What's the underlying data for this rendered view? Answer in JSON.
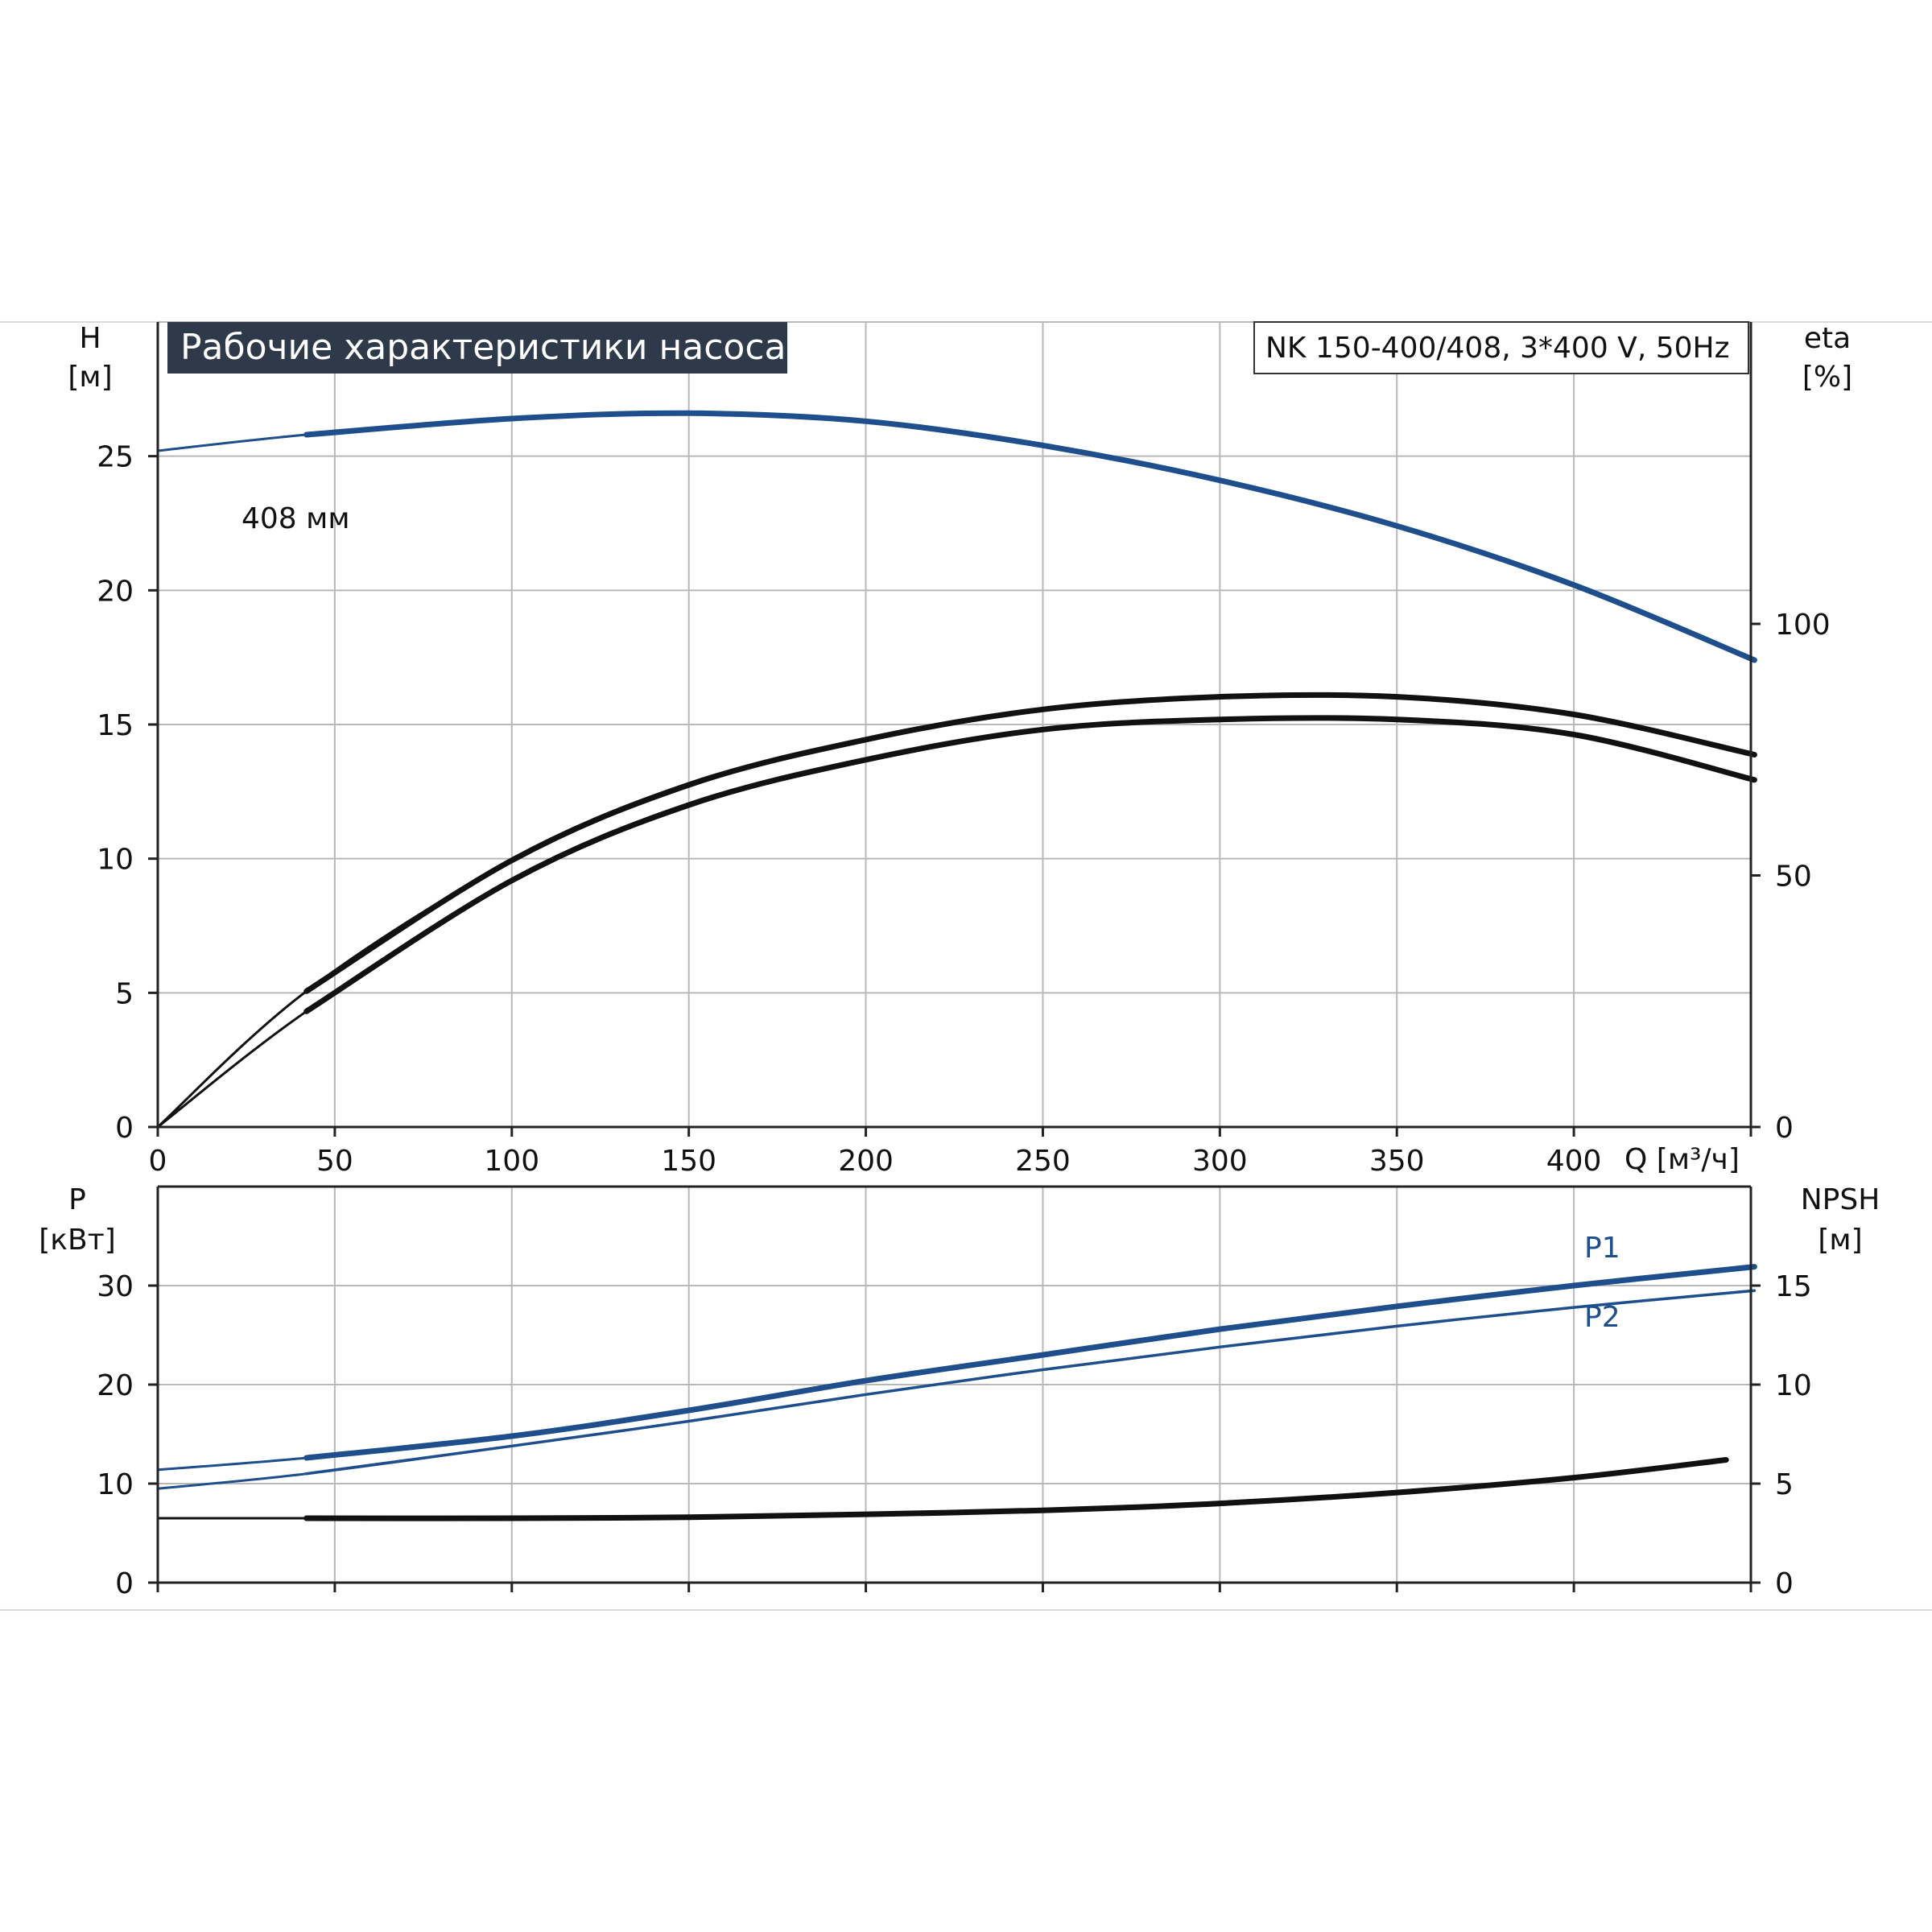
{
  "chart_data": [
    {
      "type": "line",
      "title": "Рабочие характеристики насоса",
      "model": "NK 150-400/408, 3*400 V, 50Hz",
      "xlabel": "Q [м³/ч]",
      "ylabel_left": "H",
      "ylabel_left_unit": "[м]",
      "ylabel_right": "eta",
      "ylabel_right_unit": "[%]",
      "xlim": [
        0,
        450
      ],
      "ylim_left": [
        0,
        30
      ],
      "ylim_right": [
        0,
        160
      ],
      "x_ticks": [
        "0",
        "50",
        "100",
        "150",
        "200",
        "250",
        "300",
        "350",
        "400"
      ],
      "y_ticks_left": [
        "0",
        "5",
        "10",
        "15",
        "20",
        "25"
      ],
      "y_ticks_right": [
        "0",
        "50",
        "100"
      ],
      "grid": true,
      "series": [
        {
          "name": "408 мм",
          "axis": "left",
          "color": "#1f4e8c",
          "x": [
            0,
            42,
            100,
            150,
            200,
            250,
            300,
            350,
            400,
            451
          ],
          "y": [
            25.2,
            25.8,
            26.4,
            26.6,
            26.3,
            25.4,
            24.1,
            22.4,
            20.2,
            17.4
          ]
        },
        {
          "name": "",
          "axis": "right",
          "color": "#111111",
          "x": [
            0,
            42,
            100,
            150,
            200,
            250,
            300,
            350,
            400,
            451
          ],
          "y": [
            0,
            27,
            53,
            68,
            77,
            83,
            85.5,
            85.5,
            82,
            74
          ]
        },
        {
          "name": "",
          "axis": "right",
          "color": "#111111",
          "x": [
            0,
            42,
            100,
            150,
            200,
            250,
            300,
            350,
            400,
            451
          ],
          "y": [
            0,
            23,
            49,
            64,
            73,
            79,
            81,
            81,
            78,
            69
          ]
        }
      ]
    },
    {
      "type": "line",
      "xlabel": "",
      "ylabel_left": "P",
      "ylabel_left_unit": "[кВт]",
      "ylabel_right": "NPSH",
      "ylabel_right_unit": "[м]",
      "xlim": [
        0,
        450
      ],
      "ylim_left": [
        0,
        40
      ],
      "ylim_right": [
        0,
        20
      ],
      "y_ticks_left": [
        "0",
        "10",
        "20",
        "30"
      ],
      "y_ticks_right": [
        "0",
        "5",
        "10",
        "15"
      ],
      "grid": true,
      "series": [
        {
          "name": "P1",
          "axis": "left",
          "color": "#1f4e8c",
          "x": [
            0,
            42,
            100,
            150,
            200,
            250,
            300,
            350,
            400,
            451
          ],
          "y": [
            11.4,
            12.6,
            14.8,
            17.4,
            20.4,
            23.0,
            25.6,
            27.9,
            30.0,
            31.9
          ]
        },
        {
          "name": "P2",
          "axis": "left",
          "color": "#1f4e8c",
          "x": [
            0,
            42,
            100,
            150,
            200,
            250,
            300,
            350,
            400,
            451
          ],
          "y": [
            9.5,
            11.0,
            13.8,
            16.3,
            19.0,
            21.5,
            23.8,
            25.9,
            27.8,
            29.5
          ]
        },
        {
          "name": "",
          "axis": "right",
          "color": "#111111",
          "x": [
            0,
            42,
            100,
            150,
            200,
            250,
            300,
            350,
            400,
            443
          ],
          "y": [
            3.25,
            3.25,
            3.25,
            3.3,
            3.45,
            3.65,
            4.0,
            4.55,
            5.3,
            6.2
          ]
        }
      ]
    }
  ]
}
